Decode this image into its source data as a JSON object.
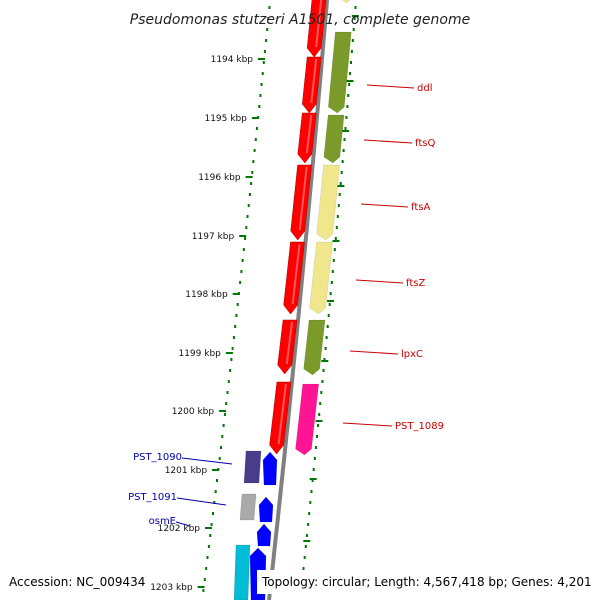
{
  "title": "Pseudomonas stutzeri A1501, complete genome",
  "accession": "Accession: NC_009434",
  "topology": "Topology: circular; Length: 4,567,418 bp; Genes: 4,201",
  "ticks": [
    "1194 kbp",
    "1195 kbp",
    "1196 kbp",
    "1197 kbp",
    "1198 kbp",
    "1199 kbp",
    "1200 kbp",
    "1201 kbp",
    "1202 kbp",
    "1203 kbp"
  ],
  "genes_right": [
    "ddl",
    "ftsQ",
    "ftsA",
    "ftsZ",
    "lpxC",
    "PST_1089"
  ],
  "genes_left": [
    "PST_1090",
    "PST_1091",
    "osmE"
  ],
  "colors": {
    "cds": "#ff0000",
    "olive": "#7a9a2a",
    "khaki": "#f0e68c",
    "magenta": "#ff1493",
    "blue": "#0000ff",
    "purple": "#483d8b",
    "gray": "#a9a9a9",
    "cyan": "#00bcd4",
    "backbone": "#808080",
    "dots": "#007700"
  }
}
